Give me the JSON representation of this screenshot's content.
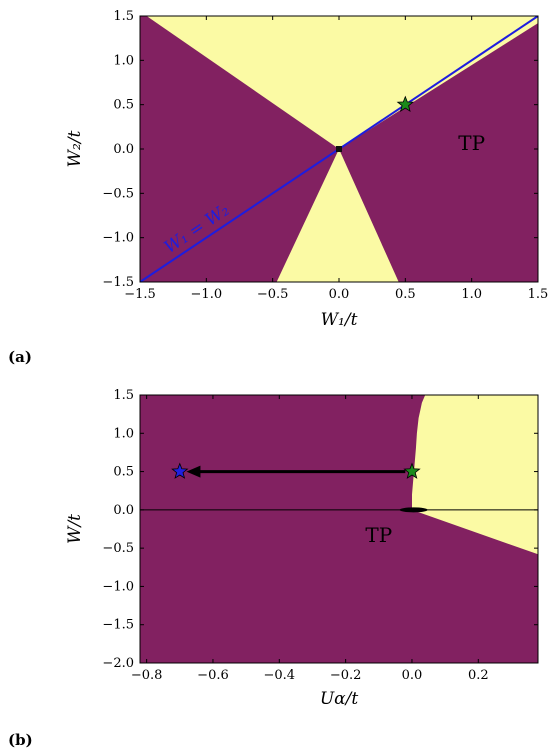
{
  "chart_data": [
    {
      "type": "heatmap",
      "panel_label": "(a)",
      "xlabel": "W₁/t",
      "ylabel": "W₂/t",
      "xlim": [
        -1.5,
        1.5
      ],
      "ylim": [
        -1.5,
        1.5
      ],
      "xticks": [
        -1.5,
        -1.0,
        -0.5,
        0.0,
        0.5,
        1.0,
        1.5
      ],
      "yticks": [
        -1.5,
        -1.0,
        -0.5,
        0.0,
        0.5,
        1.0,
        1.5
      ],
      "xtick_labels": [
        "−1.5",
        "−1.0",
        "−0.5",
        "0.0",
        "0.5",
        "1.0",
        "1.5"
      ],
      "ytick_labels": [
        "−1.5",
        "−1.0",
        "−0.5",
        "0.0",
        "0.5",
        "1.0",
        "1.5"
      ],
      "colors": {
        "topological": "#822161",
        "trivial": "#fbfaa4",
        "line": "#1d1ddf",
        "star": "#1b8a1b"
      },
      "trivial_regions": [
        {
          "name": "upper-cone",
          "polygon": [
            [
              -1.45,
              1.5
            ],
            [
              1.5,
              1.5
            ],
            [
              1.5,
              1.42
            ],
            [
              0.0,
              0.0
            ]
          ]
        },
        {
          "name": "lower-cone",
          "polygon": [
            [
              0.0,
              0.0
            ],
            [
              0.45,
              -1.5
            ],
            [
              -0.47,
              -1.5
            ]
          ]
        }
      ],
      "line": {
        "label": "W₁ = W₂",
        "x": [
          -1.5,
          1.5
        ],
        "y": [
          -1.5,
          1.5
        ]
      },
      "markers": [
        {
          "x": 0.5,
          "y": 0.5,
          "shape": "star",
          "color": "#1b8a1b"
        }
      ],
      "dot": {
        "x": 0.0,
        "y": 0.0
      },
      "region_labels": [
        {
          "text": "TP",
          "x": 1.0,
          "y": 0.05
        }
      ]
    },
    {
      "type": "heatmap",
      "panel_label": "(b)",
      "xlabel": "Uα/t",
      "ylabel": "W/t",
      "xlim": [
        -0.82,
        0.38
      ],
      "ylim": [
        -2.0,
        1.5
      ],
      "xticks": [
        -0.8,
        -0.6,
        -0.4,
        -0.2,
        0.0,
        0.2
      ],
      "yticks": [
        -2.0,
        -1.5,
        -1.0,
        -0.5,
        0.0,
        0.5,
        1.0,
        1.5
      ],
      "xtick_labels": [
        "−0.8",
        "−0.6",
        "−0.4",
        "−0.2",
        "0.0",
        "0.2"
      ],
      "ytick_labels": [
        "−2.0",
        "−1.5",
        "−1.0",
        "−0.5",
        "0.0",
        "0.5",
        "1.0",
        "1.5"
      ],
      "colors": {
        "topological": "#822161",
        "trivial": "#fbfaa4",
        "star_start": "#1b8a1b",
        "star_end": "#2020e0"
      },
      "trivial_regions": [
        {
          "name": "upper-right",
          "boundary": [
            [
              0.38,
              1.5
            ],
            [
              0.04,
              1.5
            ],
            [
              0.03,
              1.4
            ],
            [
              0.025,
              1.3
            ],
            [
              0.02,
              1.2
            ],
            [
              0.015,
              1.0
            ],
            [
              0.012,
              0.8
            ],
            [
              0.008,
              0.6
            ],
            [
              0.004,
              0.4
            ],
            [
              0.0,
              0.2
            ],
            [
              0.0,
              0.0
            ],
            [
              0.38,
              0.0
            ]
          ]
        },
        {
          "name": "lower-right",
          "polygon": [
            [
              0.0,
              0.0
            ],
            [
              0.38,
              0.0
            ],
            [
              0.38,
              -0.58
            ]
          ]
        }
      ],
      "zero_line": {
        "y": 0.0
      },
      "markers": [
        {
          "x": 0.0,
          "y": 0.5,
          "shape": "star",
          "color": "#1b8a1b"
        },
        {
          "x": -0.7,
          "y": 0.5,
          "shape": "star",
          "color": "#2020e0"
        }
      ],
      "arrow": {
        "from": [
          -0.02,
          0.5
        ],
        "to": [
          -0.68,
          0.5
        ]
      },
      "region_labels": [
        {
          "text": "TP",
          "x": -0.1,
          "y": -0.35
        }
      ]
    }
  ]
}
